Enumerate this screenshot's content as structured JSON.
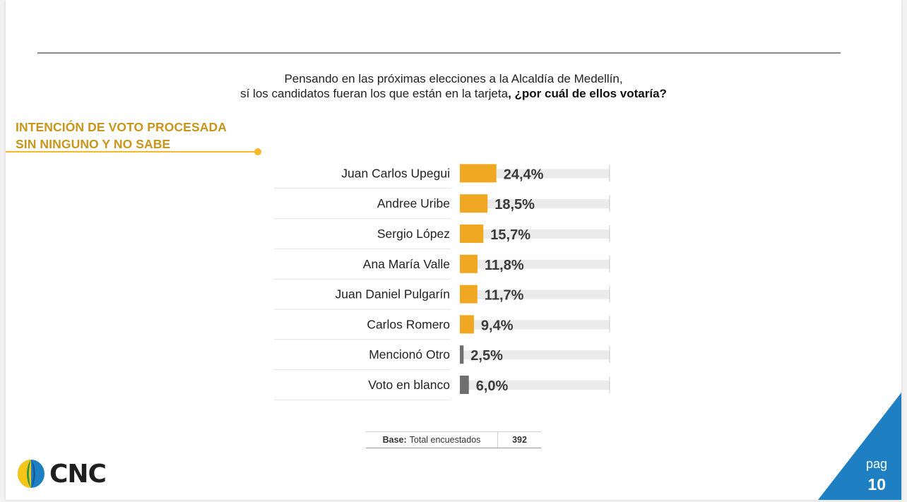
{
  "question": {
    "line1": "Pensando en las próximas elecciones a la Alcaldía de Medellín,",
    "line2": "sí los candidatos fueran los que están en la tarjeta",
    "line2_bold": "¿por cuál de ellos votaría?"
  },
  "section": {
    "line1": "INTENCIÓN DE VOTO PROCESADA",
    "line2": "SIN NINGUNO Y NO SABE"
  },
  "chart_data": {
    "type": "bar",
    "orientation": "horizontal",
    "categories": [
      "Juan Carlos Upegui",
      "Andree Uribe",
      "Sergio López",
      "Ana María Valle",
      "Juan Daniel Pulgarín",
      "Carlos Romero",
      "Mencionó Otro",
      "Voto en blanco"
    ],
    "values": [
      24.4,
      18.5,
      15.7,
      11.8,
      11.7,
      9.4,
      2.5,
      6.0
    ],
    "labels": [
      "24,4%",
      "18,5%",
      "15,7%",
      "11,8%",
      "11,7%",
      "9,4%",
      "2,5%",
      "6,0%"
    ],
    "bar_colors": [
      "#f0a823",
      "#f0a823",
      "#f0a823",
      "#f0a823",
      "#f0a823",
      "#f0a823",
      "#6f6f6f",
      "#6f6f6f"
    ],
    "xlim": [
      0,
      100
    ],
    "grid": false,
    "legend": "none"
  },
  "base": {
    "label": "Base:",
    "text": "Total encuestados",
    "value": "392"
  },
  "brand": {
    "name": "CNC"
  },
  "page": {
    "label": "pag",
    "number": "10"
  },
  "colors": {
    "accent": "#f0a823",
    "title": "#c9951a",
    "neutral": "#6f6f6f",
    "corner": "#1e7fc3"
  }
}
